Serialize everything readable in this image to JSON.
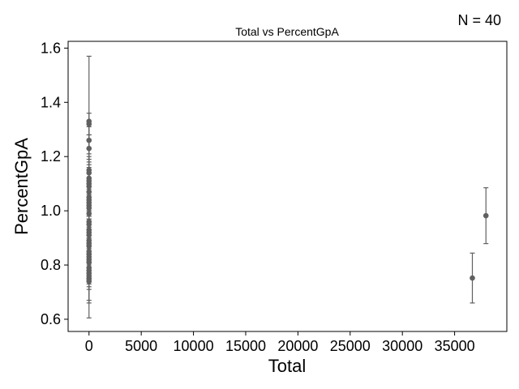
{
  "chart_data": {
    "type": "scatter",
    "title": "Total vs PercentGpA",
    "annotation": "N = 40",
    "xlabel": "Total",
    "ylabel": "PercentGpA",
    "xlim": [
      -2000,
      40000
    ],
    "ylim": [
      0.555,
      1.625
    ],
    "xticks": [
      0,
      5000,
      10000,
      15000,
      20000,
      25000,
      30000,
      35000
    ],
    "xtick_labels": [
      "0",
      "5000",
      "10000",
      "15000",
      "20000",
      "25000",
      "30000",
      "35000"
    ],
    "yticks": [
      0.6,
      0.8,
      1.0,
      1.2,
      1.4,
      1.6
    ],
    "ytick_labels": [
      "0.6",
      "0.8",
      "1.0",
      "1.2",
      "1.4",
      "1.6"
    ],
    "grid": false,
    "marker_color": "#606060",
    "points": [
      {
        "x": 0,
        "y": 1.33,
        "yerr": 0.24
      },
      {
        "x": 0,
        "y": 1.32,
        "yerr": 0.04
      },
      {
        "x": 0,
        "y": 1.26,
        "yerr": 0.05
      },
      {
        "x": 0,
        "y": 1.23,
        "yerr": 0.05
      },
      {
        "x": 0,
        "y": 1.15,
        "yerr": 0.05
      },
      {
        "x": 0,
        "y": 1.14,
        "yerr": 0.05
      },
      {
        "x": 0,
        "y": 1.12,
        "yerr": 0.05
      },
      {
        "x": 0,
        "y": 1.11,
        "yerr": 0.05
      },
      {
        "x": 0,
        "y": 1.1,
        "yerr": 0.05
      },
      {
        "x": 0,
        "y": 1.09,
        "yerr": 0.05
      },
      {
        "x": 0,
        "y": 1.07,
        "yerr": 0.05
      },
      {
        "x": 0,
        "y": 1.05,
        "yerr": 0.05
      },
      {
        "x": 0,
        "y": 1.04,
        "yerr": 0.05
      },
      {
        "x": 0,
        "y": 1.03,
        "yerr": 0.05
      },
      {
        "x": 0,
        "y": 1.01,
        "yerr": 0.05
      },
      {
        "x": 0,
        "y": 0.99,
        "yerr": 0.05
      },
      {
        "x": 0,
        "y": 0.96,
        "yerr": 0.05
      },
      {
        "x": 0,
        "y": 0.95,
        "yerr": 0.05
      },
      {
        "x": 0,
        "y": 0.93,
        "yerr": 0.05
      },
      {
        "x": 0,
        "y": 0.92,
        "yerr": 0.05
      },
      {
        "x": 0,
        "y": 0.91,
        "yerr": 0.05
      },
      {
        "x": 0,
        "y": 0.89,
        "yerr": 0.05
      },
      {
        "x": 0,
        "y": 0.88,
        "yerr": 0.05
      },
      {
        "x": 0,
        "y": 0.87,
        "yerr": 0.05
      },
      {
        "x": 0,
        "y": 0.85,
        "yerr": 0.05
      },
      {
        "x": 0,
        "y": 0.84,
        "yerr": 0.05
      },
      {
        "x": 0,
        "y": 0.83,
        "yerr": 0.05
      },
      {
        "x": 0,
        "y": 0.82,
        "yerr": 0.05
      },
      {
        "x": 0,
        "y": 0.81,
        "yerr": 0.05
      },
      {
        "x": 0,
        "y": 0.79,
        "yerr": 0.05
      },
      {
        "x": 0,
        "y": 0.78,
        "yerr": 0.05
      },
      {
        "x": 0,
        "y": 0.77,
        "yerr": 0.05
      },
      {
        "x": 0,
        "y": 0.76,
        "yerr": 0.05
      },
      {
        "x": 0,
        "y": 0.75,
        "yerr": 0.08
      },
      {
        "x": 0,
        "y": 0.74,
        "yerr": 0.08
      },
      {
        "x": 0,
        "y": 0.75,
        "yerr": 0.145
      },
      {
        "x": 0,
        "y": 0.81,
        "yerr": 0.07
      },
      {
        "x": 0,
        "y": 1.02,
        "yerr": 0.05
      },
      {
        "x": 36700,
        "y": 0.752,
        "yerr": 0.092
      },
      {
        "x": 38000,
        "y": 0.982,
        "yerr": 0.103
      }
    ]
  }
}
